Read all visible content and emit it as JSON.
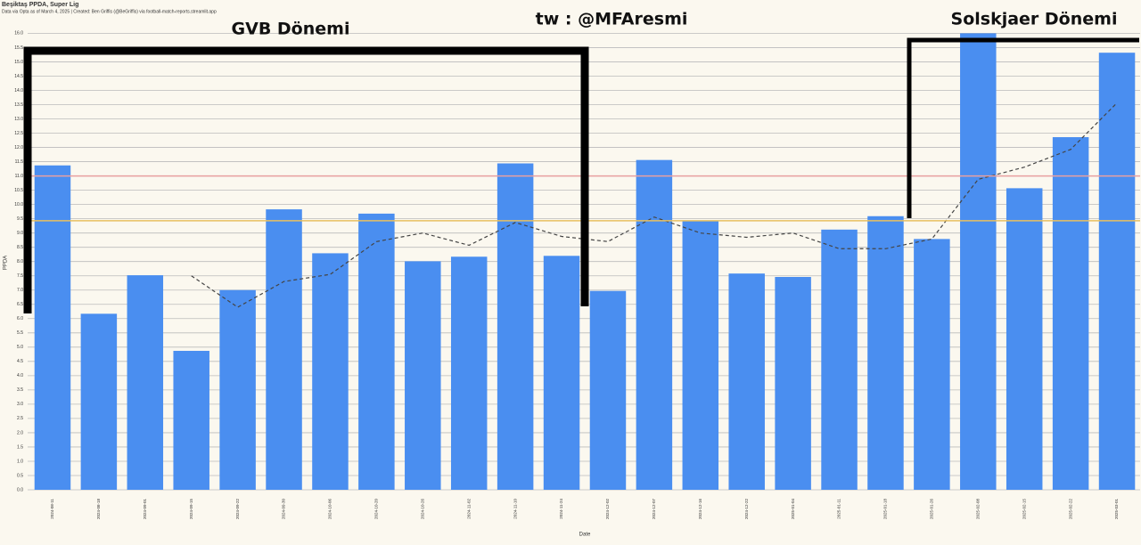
{
  "chart_data": {
    "type": "bar",
    "title": "Beşiktaş PPDA, Super Lig",
    "subtitle": "Data via Opta as of March 4, 2025 | Created: Ben Griffis (@BeGriffis) via football-match-reports.streamlit.app",
    "y_label": "PPDA",
    "x_label": "Date",
    "annotations": [
      "GVB Dönemi",
      "tw : @MFAresmi",
      "Solskjaer Dönemi"
    ],
    "categories": [
      "2024-08-11",
      "2024-08-18",
      "2024-09-01",
      "2024-09-15",
      "2024-09-22",
      "2024-09-30",
      "2024-10-06",
      "2024-10-20",
      "2024-10-26",
      "2024-11-02",
      "2024-11-10",
      "2024-11-24",
      "2024-12-02",
      "2024-12-07",
      "2024-12-16",
      "2024-12-22",
      "2025-01-04",
      "2025-01-11",
      "2025-01-18",
      "2025-01-26",
      "2025-02-08",
      "2025-02-15",
      "2025-02-22",
      "2025-03-01"
    ],
    "series": [
      {
        "type": "bar",
        "color": "#4a8ef0",
        "values": [
          11.37,
          6.17,
          7.52,
          4.87,
          7.0,
          9.83,
          8.29,
          9.68,
          8.01,
          8.17,
          11.44,
          8.2,
          6.97,
          11.56,
          9.43,
          7.58,
          7.46,
          9.12,
          9.59,
          8.79,
          16.0,
          10.57,
          12.36,
          15.32
        ]
      },
      {
        "type": "line",
        "color": "#444444",
        "dashed": true,
        "values": [
          null,
          null,
          null,
          7.5,
          6.4,
          7.3,
          7.55,
          8.7,
          9.0,
          8.57,
          9.37,
          8.88,
          8.7,
          9.56,
          9.0,
          8.85,
          9.0,
          8.45,
          8.45,
          8.79,
          10.88,
          11.31,
          11.93,
          13.56
        ]
      }
    ],
    "reference_lines": [
      {
        "value": 11.0,
        "color": "#e8a0a0"
      },
      {
        "value": 9.43,
        "color": "#e8c060"
      }
    ],
    "ylim": [
      0,
      16.2
    ],
    "yticks": [
      {
        "value": 0,
        "label": "0.0"
      },
      {
        "value": 0.5,
        "label": "0.5"
      },
      {
        "value": 1,
        "label": "1.0"
      },
      {
        "value": 1.5,
        "label": "1.5"
      },
      {
        "value": 2,
        "label": "2.0"
      },
      {
        "value": 2.5,
        "label": "2.5"
      },
      {
        "value": 3,
        "label": "3.0"
      },
      {
        "value": 3.5,
        "label": "3.5"
      },
      {
        "value": 4,
        "label": "4.0"
      },
      {
        "value": 4.5,
        "label": "4.5"
      },
      {
        "value": 5,
        "label": "5.0"
      },
      {
        "value": 5.5,
        "label": "5.5"
      },
      {
        "value": 6,
        "label": "6.0"
      },
      {
        "value": 6.5,
        "label": "6.5"
      },
      {
        "value": 7,
        "label": "7.0"
      },
      {
        "value": 7.5,
        "label": "7.5"
      },
      {
        "value": 8,
        "label": "8.0"
      },
      {
        "value": 8.5,
        "label": "8.5"
      },
      {
        "value": 9,
        "label": "9.0"
      },
      {
        "value": 9.5,
        "label": "9.5"
      },
      {
        "value": 10,
        "label": "10.0"
      },
      {
        "value": 10.5,
        "label": "10.5"
      },
      {
        "value": 11,
        "label": "11.0"
      },
      {
        "value": 11.5,
        "label": "11.5"
      },
      {
        "value": 12,
        "label": "12.0"
      },
      {
        "value": 12.5,
        "label": "12.5"
      },
      {
        "value": 13,
        "label": "13.0"
      },
      {
        "value": 13.5,
        "label": "13.5"
      },
      {
        "value": 14,
        "label": "14.0"
      },
      {
        "value": 14.5,
        "label": "14.5"
      },
      {
        "value": 15,
        "label": "15.0"
      },
      {
        "value": 15.5,
        "label": "15.5"
      },
      {
        "value": 16,
        "label": "16.0"
      }
    ],
    "grid": true
  }
}
